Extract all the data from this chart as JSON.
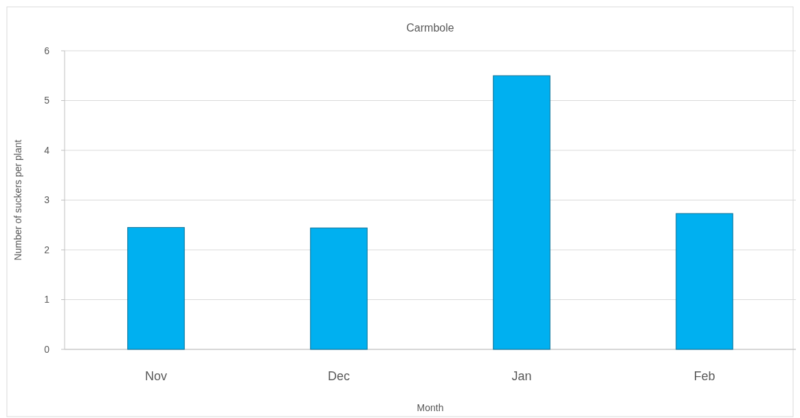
{
  "chart_data": {
    "type": "bar",
    "title": "Carmbole",
    "xlabel": "Month",
    "ylabel": "Number of suckers per plant",
    "categories": [
      "Nov",
      "Dec",
      "Jan",
      "Feb"
    ],
    "values": [
      2.45,
      2.44,
      5.5,
      2.73
    ],
    "color": "#00b0f0",
    "ylim": [
      0,
      6
    ],
    "yticks": [
      0,
      1,
      2,
      3,
      4,
      5,
      6
    ],
    "grid": "y"
  }
}
